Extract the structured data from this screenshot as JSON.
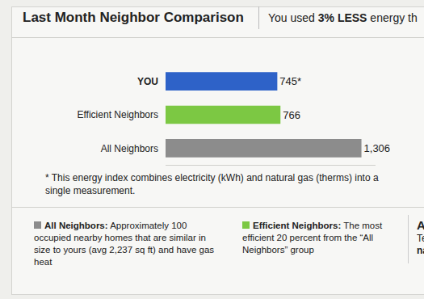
{
  "header": {
    "title": "Last Month Neighbor Comparison",
    "summary": {
      "prefix": "You used ",
      "emphasis": "3% LESS",
      "suffix": " energy th"
    }
  },
  "chart_data": {
    "type": "bar",
    "orientation": "horizontal",
    "categories": [
      "YOU",
      "Efficient Neighbors",
      "All Neighbors"
    ],
    "values": [
      745,
      766,
      1306
    ],
    "value_labels": [
      "745*",
      "766",
      "1,306"
    ],
    "colors": [
      "#2e62c8",
      "#7cc843",
      "#8c8c8c"
    ],
    "data_labels": true,
    "tick_labels": "y",
    "grid": false,
    "xlim": [
      0,
      1400
    ],
    "xticks": []
  },
  "footnote": "* This energy index combines electricity (kWh) and natural gas (therms) into a single measurement.",
  "legend_notes": [
    {
      "name": "All Neighbors:",
      "text": "Approximately 100 occupied nearby homes that are similar in size to yours (avg 2,237 sq ft) and have gas heat",
      "color": "#8c8c8c"
    },
    {
      "name": "Efficient Neighbors:",
      "text": "The most efficient 20 percent from the “All Neighbors” group",
      "color": "#7cc843"
    }
  ],
  "cut_off_panel": [
    "Are",
    "Tell u",
    "natio"
  ]
}
